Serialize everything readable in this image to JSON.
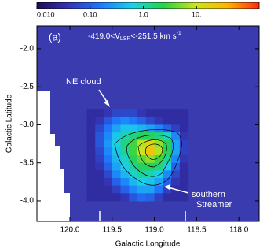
{
  "chart_data": {
    "type": "heatmap",
    "panel_label": "(a)",
    "velocity_label": {
      "prefix": "-419.0<V",
      "sub": "LSR",
      "mid": "<-251.5 km s",
      "sup": "-1"
    },
    "annotations": [
      {
        "lines": [
          "NE cloud"
        ]
      },
      {
        "lines": [
          "southern",
          "Streamer"
        ]
      }
    ],
    "x_label": "Galactic Longitude",
    "y_label": "Galactic Latitude",
    "xlim": [
      120.39,
      117.76
    ],
    "xticks": [
      {
        "value": 120,
        "label": "120.0"
      },
      119.5,
      {
        "value": 119,
        "label": "119.0"
      },
      118.5,
      {
        "value": 118,
        "label": "118.0"
      }
    ],
    "ylim": [
      -4.27,
      -1.7
    ],
    "yticks": [
      {
        "value": -2,
        "label": "-2.0"
      },
      -2.5,
      {
        "value": -3,
        "label": "-3.0"
      },
      -3.5,
      {
        "value": -4,
        "label": "-4.0"
      }
    ],
    "color_scale": "log",
    "clim": [
      0.01,
      150
    ],
    "cticks": [
      {
        "value": 0.01,
        "label": "0.010"
      },
      {
        "value": 0.1,
        "label": "0.10"
      },
      {
        "value": 1,
        "label": "1.0"
      },
      {
        "value": 10,
        "label": "10."
      }
    ],
    "colormap": [
      "#1f0a55",
      "#3434b4",
      "#1e78ff",
      "#19d2e6",
      "#28d246",
      "#c8e61e",
      "#ffb400",
      "#ff2814"
    ],
    "x": [
      119.75,
      119.65,
      119.55,
      119.45,
      119.35,
      119.25,
      119.15,
      119.05,
      118.95,
      118.85,
      118.75,
      118.65
    ],
    "y": [
      -2.85,
      -2.95,
      -3.05,
      -3.15,
      -3.25,
      -3.35,
      -3.45,
      -3.55,
      -3.65,
      -3.75,
      -3.85,
      -3.95
    ],
    "z": [
      [
        0.03,
        0.03,
        0.04,
        0.06,
        0.06,
        0.06,
        0.04,
        0.03,
        0.03,
        0.03,
        0.03,
        0.03
      ],
      [
        0.03,
        0.04,
        0.08,
        0.15,
        0.2,
        0.15,
        0.1,
        0.06,
        0.04,
        0.03,
        0.03,
        0.03
      ],
      [
        0.03,
        0.06,
        0.15,
        0.3,
        0.5,
        0.5,
        0.4,
        0.3,
        0.2,
        0.1,
        0.05,
        0.03
      ],
      [
        0.03,
        0.08,
        0.2,
        0.5,
        1.0,
        1.5,
        2,
        2,
        1.5,
        0.8,
        0.2,
        0.04
      ],
      [
        0.03,
        0.08,
        0.25,
        0.6,
        1.5,
        3,
        8,
        15,
        6,
        2,
        0.3,
        0.05
      ],
      [
        0.03,
        0.06,
        0.2,
        0.5,
        1.2,
        3,
        10,
        25,
        8,
        2,
        0.3,
        0.05
      ],
      [
        0.03,
        0.05,
        0.15,
        0.4,
        0.8,
        2,
        4,
        6,
        3,
        1.2,
        0.2,
        0.04
      ],
      [
        0.03,
        0.04,
        0.1,
        0.3,
        0.6,
        1.2,
        2,
        2,
        1.5,
        0.6,
        0.1,
        0.03
      ],
      [
        0.03,
        0.03,
        0.06,
        0.2,
        0.4,
        0.8,
        1.2,
        1.0,
        0.6,
        0.2,
        0.06,
        0.03
      ],
      [
        0.03,
        0.03,
        0.04,
        0.1,
        0.2,
        0.4,
        0.6,
        0.5,
        0.3,
        0.1,
        0.04,
        0.03
      ],
      [
        0.03,
        0.03,
        0.03,
        0.05,
        0.1,
        0.2,
        0.3,
        0.3,
        0.15,
        0.05,
        0.03,
        0.03
      ],
      [
        0.03,
        0.03,
        0.03,
        0.03,
        0.04,
        0.08,
        0.12,
        0.1,
        0.05,
        0.03,
        0.03,
        0.03
      ]
    ]
  }
}
